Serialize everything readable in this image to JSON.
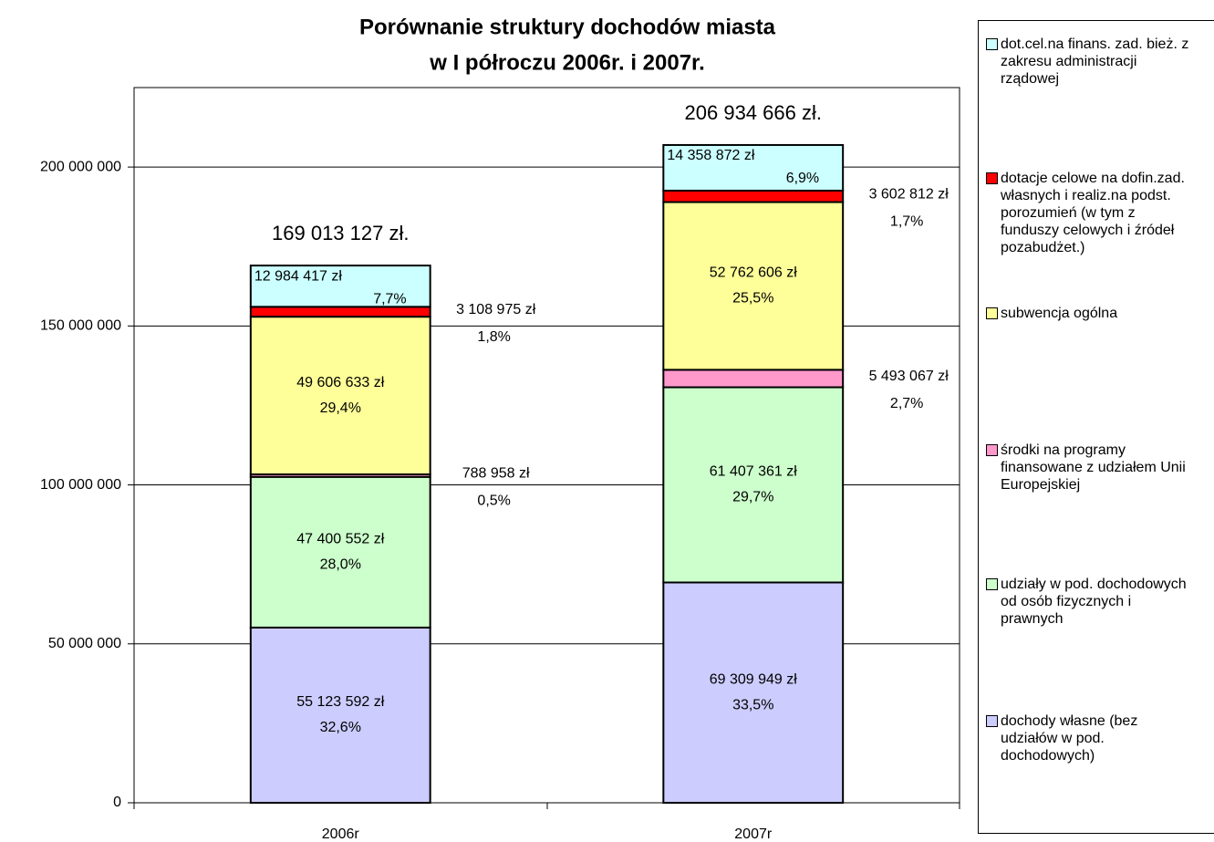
{
  "chart_data": {
    "type": "bar",
    "stacked": true,
    "title": [
      "Porównanie struktury dochodów miasta",
      "w I półroczu 2006r. i 2007r."
    ],
    "categories": [
      "2006r",
      "2007r"
    ],
    "ylim": [
      0,
      225000000
    ],
    "yticks": [
      0,
      {
        "value": 50000000,
        "label": "50 000 000"
      },
      {
        "value": 100000000,
        "label": "100 000 000"
      },
      {
        "value": 150000000,
        "label": "150 000 000"
      },
      {
        "value": 200000000,
        "label": "200 000 000"
      }
    ],
    "grid": true,
    "legend": "right",
    "series": [
      {
        "name": "dochody własne (bez udziałów w pod. dochodowych)",
        "color": "#ccccff",
        "values": [
          55123592,
          69309949
        ],
        "value_labels": [
          "55 123 592 zł",
          "69 309 949 zł"
        ],
        "shares": [
          "32,6%",
          "33,5%"
        ]
      },
      {
        "name": "udziały w pod. dochodowych od osób fizycznych i prawnych",
        "color": "#ccffcc",
        "values": [
          47400552,
          61407361
        ],
        "value_labels": [
          "47 400 552 zł",
          "61 407 361 zł"
        ],
        "shares": [
          "28,0%",
          "29,7%"
        ]
      },
      {
        "name": "środki na programy finansowane z udziałem Unii Europejskiej",
        "color": "#ff99cc",
        "values": [
          788958,
          5493067
        ],
        "value_labels": [
          "788 958 zł",
          "5 493 067 zł"
        ],
        "shares": [
          "0,5%",
          "2,7%"
        ]
      },
      {
        "name": "subwencja ogólna",
        "color": "#ffff99",
        "values": [
          49606633,
          52762606
        ],
        "value_labels": [
          "49 606 633 zł",
          "52 762 606 zł"
        ],
        "shares": [
          "29,4%",
          "25,5%"
        ]
      },
      {
        "name": "dotacje celowe na dofin.zad. własnych i realiz.na podst. porozumień (w tym z funduszy celowych i źródeł pozabudżet.)",
        "color": "#ff0000",
        "values": [
          3108975,
          3602812
        ],
        "value_labels": [
          "3 108 975 zł",
          "3 602 812 zł"
        ],
        "shares": [
          "1,8%",
          "1,7%"
        ]
      },
      {
        "name": "dot.cel.na finans. zad. bież. z zakresu administracji rządowej",
        "color": "#ccffff",
        "values": [
          12984417,
          14358872
        ],
        "value_labels": [
          "12 984 417 zł",
          "14 358 872 zł"
        ],
        "shares": [
          "7,7%",
          "6,9%"
        ]
      }
    ],
    "totals": [
      169013127,
      206934666
    ],
    "total_labels": [
      "169 013 127 zł.",
      "206 934 666 zł."
    ]
  }
}
